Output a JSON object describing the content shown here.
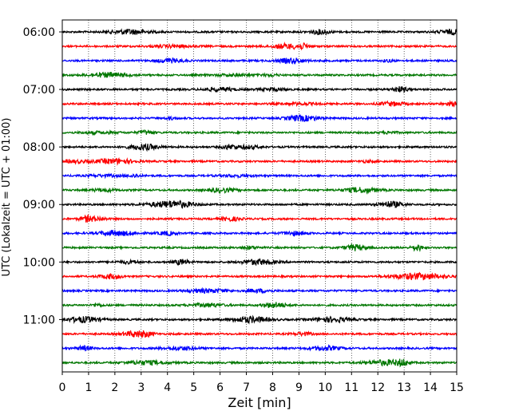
{
  "chart_data": {
    "type": "line",
    "title": "",
    "xlabel": "Zeit  [min]",
    "ylabel": "UTC (Lokalzeit = UTC + 01:00)",
    "xlim": [
      0,
      15
    ],
    "x_ticks": [
      "0",
      "1",
      "2",
      "3",
      "4",
      "5",
      "6",
      "7",
      "8",
      "9",
      "10",
      "11",
      "12",
      "13",
      "14",
      "15"
    ],
    "y_tick_labels": [
      "06:00",
      "07:00",
      "08:00",
      "09:00",
      "10:00",
      "11:00"
    ],
    "grid": "vertical dotted lines at each minute",
    "legend": "none",
    "trace_colors": [
      "#000000",
      "#ff0000",
      "#0000ff",
      "#007700"
    ],
    "series": [
      {
        "start": "06:00",
        "color": "#000000"
      },
      {
        "start": "06:15",
        "color": "#ff0000"
      },
      {
        "start": "06:30",
        "color": "#0000ff"
      },
      {
        "start": "06:45",
        "color": "#007700"
      },
      {
        "start": "07:00",
        "color": "#000000"
      },
      {
        "start": "07:15",
        "color": "#ff0000"
      },
      {
        "start": "07:30",
        "color": "#0000ff"
      },
      {
        "start": "07:45",
        "color": "#007700"
      },
      {
        "start": "08:00",
        "color": "#000000"
      },
      {
        "start": "08:15",
        "color": "#ff0000"
      },
      {
        "start": "08:30",
        "color": "#0000ff"
      },
      {
        "start": "08:45",
        "color": "#007700"
      },
      {
        "start": "09:00",
        "color": "#000000"
      },
      {
        "start": "09:15",
        "color": "#ff0000"
      },
      {
        "start": "09:30",
        "color": "#0000ff"
      },
      {
        "start": "09:45",
        "color": "#007700"
      },
      {
        "start": "10:00",
        "color": "#000000"
      },
      {
        "start": "10:15",
        "color": "#ff0000"
      },
      {
        "start": "10:30",
        "color": "#0000ff"
      },
      {
        "start": "10:45",
        "color": "#007700"
      },
      {
        "start": "11:00",
        "color": "#000000"
      },
      {
        "start": "11:15",
        "color": "#ff0000"
      },
      {
        "start": "11:30",
        "color": "#0000ff"
      },
      {
        "start": "11:45",
        "color": "#007700"
      }
    ]
  }
}
